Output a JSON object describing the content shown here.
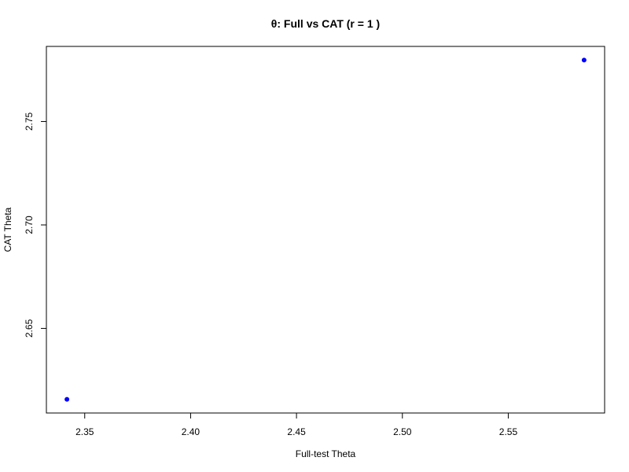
{
  "chart_data": {
    "type": "scatter",
    "title": "θ: Full vs CAT (r = 1 )",
    "xlabel": "Full-test Theta",
    "ylabel": "CAT Theta",
    "x": [
      2.3416,
      2.5858
    ],
    "y": [
      2.6157,
      2.7797
    ],
    "xlim": [
      2.3319,
      2.5955
    ],
    "ylim": [
      2.6091,
      2.7863
    ],
    "xticks": [
      2.35,
      2.4,
      2.45,
      2.5,
      2.55
    ],
    "xtick_labels": [
      "2.35",
      "2.40",
      "2.45",
      "2.50",
      "2.55"
    ],
    "yticks": [
      2.65,
      2.7,
      2.75
    ],
    "ytick_labels": [
      "2.65",
      "2.70",
      "2.75"
    ],
    "point_color": "#0000ff",
    "grid": false,
    "legend": "none"
  }
}
